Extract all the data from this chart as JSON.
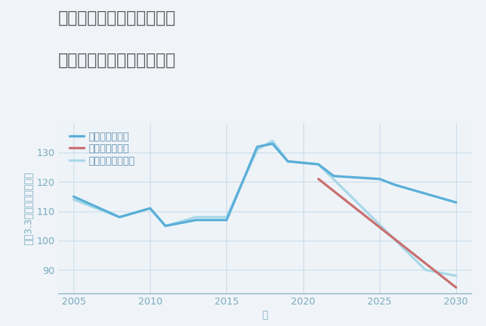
{
  "title_line1": "愛知県稲沢市平和町横池の",
  "title_line2": "中古マンションの価格推移",
  "xlabel": "年",
  "ylabel": "坪（3.3㎡）単価（万円）",
  "background_color": "#f0f4f8",
  "plot_background_color": "#eef3f8",
  "good_scenario": {
    "label": "グッドシナリオ",
    "color": "#5aafd8",
    "linewidth": 2.5,
    "years": [
      2005,
      2008,
      2010,
      2011,
      2013,
      2015,
      2017,
      2018,
      2019,
      2021,
      2022,
      2025,
      2026,
      2030
    ],
    "values": [
      115,
      108,
      111,
      105,
      107,
      107,
      132,
      133,
      127,
      126,
      122,
      121,
      119,
      113
    ]
  },
  "bad_scenario": {
    "label": "バッドシナリオ",
    "color": "#c97070",
    "linewidth": 2.5,
    "years": [
      2021,
      2030
    ],
    "values": [
      121,
      84
    ]
  },
  "normal_scenario": {
    "label": "ノーマルシナリオ",
    "color": "#a8d8e8",
    "linewidth": 2.5,
    "years": [
      2005,
      2008,
      2010,
      2011,
      2013,
      2015,
      2017,
      2018,
      2019,
      2021,
      2028,
      2030
    ],
    "values": [
      114,
      108,
      111,
      105,
      108,
      108,
      131,
      134,
      127,
      126,
      90,
      88
    ]
  },
  "ylim": [
    82,
    140
  ],
  "xlim": [
    2004,
    2031
  ],
  "yticks": [
    90,
    100,
    110,
    120,
    130
  ],
  "xticks": [
    2005,
    2010,
    2015,
    2020,
    2025,
    2030
  ],
  "title_color": "#555555",
  "axis_color": "#8ab0c8",
  "tick_color": "#7aaac0",
  "grid_color": "#c8dce8",
  "legend_text_color": "#5a8aaa",
  "title_fontsize": 17,
  "axis_label_fontsize": 10,
  "tick_fontsize": 10,
  "legend_fontsize": 10
}
